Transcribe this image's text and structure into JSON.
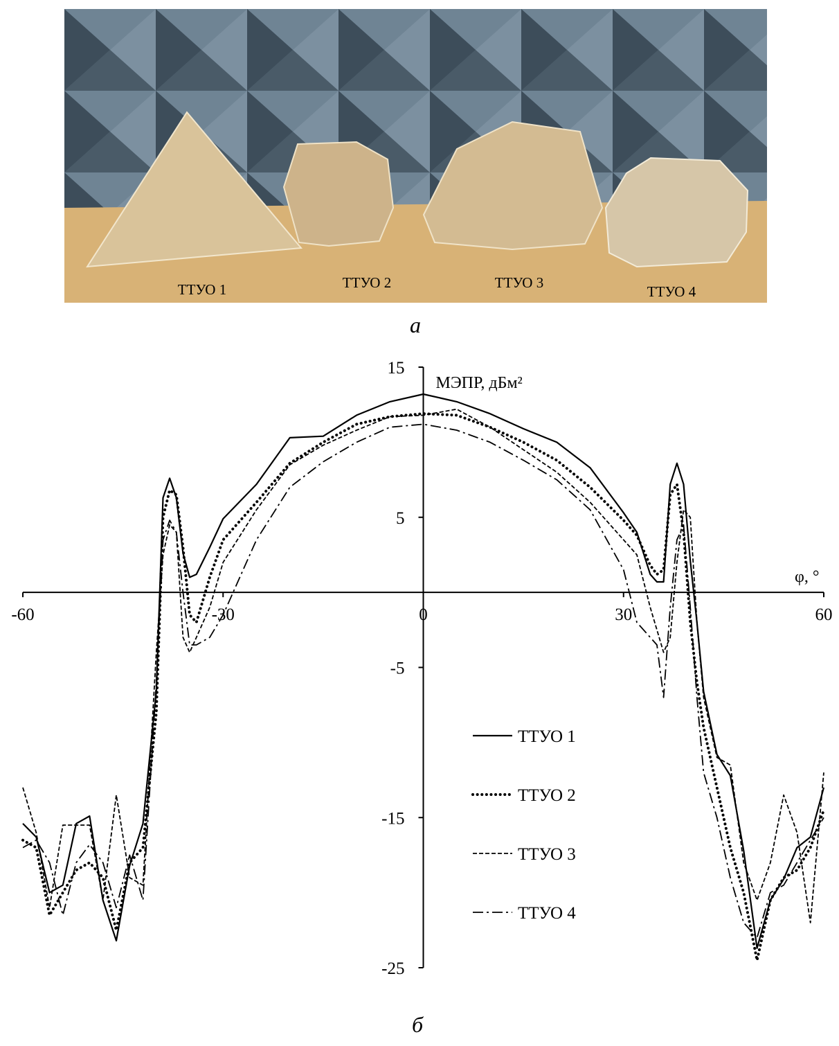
{
  "photo_labels": [
    "ТТУО 1",
    "ТТУО 2",
    "ТТУО 3",
    "ТТУО 4"
  ],
  "photo_caption": "а",
  "chart_caption": "б",
  "chart_data": {
    "type": "line",
    "y_label": "МЭПР, дБм²",
    "x_label": "φ, °",
    "xlim": [
      -60,
      60
    ],
    "xticks": [
      -60,
      -30,
      0,
      30,
      60
    ],
    "ylim": [
      -25,
      15
    ],
    "yticks": [
      -25,
      -15,
      -5,
      5,
      15
    ],
    "x": [
      -60,
      -58,
      -56,
      -54,
      -52,
      -50,
      -48,
      -46,
      -44,
      -42,
      -40,
      -39,
      -38,
      -37,
      -36,
      -35,
      -34,
      -32,
      -30,
      -25,
      -20,
      -15,
      -10,
      -5,
      0,
      5,
      10,
      15,
      20,
      25,
      30,
      32,
      34,
      35,
      36,
      37,
      38,
      39,
      40,
      41,
      42,
      44,
      46,
      48,
      50,
      52,
      54,
      56,
      58,
      60
    ],
    "series": [
      {
        "name": "ТТУО 1",
        "color": "#000000",
        "dash": "solid",
        "values": [
          -15.4,
          -16.3,
          -20,
          -19.5,
          -15.4,
          -14.9,
          -20.5,
          -23.2,
          -18.2,
          -15.4,
          -6.6,
          6.3,
          7.6,
          6.3,
          2.6,
          1.0,
          1.2,
          3,
          4.9,
          7.2,
          10.3,
          10.4,
          11.8,
          12.7,
          13.2,
          12.7,
          11.9,
          10.9,
          10,
          8.3,
          5.3,
          4,
          1.2,
          0.7,
          0.7,
          7.2,
          8.6,
          7.2,
          2.1,
          -2,
          -6.6,
          -10.8,
          -12.2,
          -17.2,
          -23.7,
          -20.5,
          -19.1,
          -17,
          -16.3,
          -13
        ]
      },
      {
        "name": "ТТУО 2",
        "color": "#000000",
        "dash": "dotted",
        "values": [
          -16.5,
          -17,
          -21.5,
          -20,
          -18.5,
          -18,
          -19,
          -22.5,
          -18,
          -17,
          -8,
          5,
          6.8,
          6.5,
          3,
          -1.5,
          -2,
          1,
          3.5,
          6,
          8.6,
          10,
          11.2,
          11.7,
          11.9,
          11.8,
          11,
          10,
          8.8,
          7,
          4.8,
          3.8,
          1.8,
          1.2,
          1.5,
          6.5,
          7.2,
          4,
          -2,
          -6,
          -9,
          -13,
          -17,
          -20,
          -24.5,
          -20.5,
          -19,
          -18.5,
          -17,
          -14.5
        ]
      },
      {
        "name": "ТТУО 3",
        "color": "#000000",
        "dash": "dashed",
        "values": [
          -13,
          -16,
          -21,
          -15.5,
          -15.5,
          -15.5,
          -20.5,
          -13.5,
          -19,
          -19.5,
          -4,
          2.5,
          4.5,
          4,
          -3,
          -4,
          -3,
          -1,
          2,
          5.5,
          8.5,
          9.8,
          10.8,
          11.7,
          11.8,
          12.2,
          11,
          9.5,
          8,
          6,
          3.5,
          2.5,
          -1,
          -2.5,
          -4,
          -3,
          2,
          5.5,
          5,
          -2,
          -7,
          -11,
          -11.5,
          -18,
          -20.5,
          -18,
          -13.5,
          -16,
          -22,
          -12
        ]
      },
      {
        "name": "ТТУО 4",
        "color": "#000000",
        "dash": "dashdot",
        "values": [
          -17,
          -16.5,
          -18,
          -21.5,
          -18,
          -16.8,
          -18,
          -21,
          -17.5,
          -20.5,
          -6,
          3.5,
          4.8,
          4,
          0,
          -3.5,
          -3.5,
          -3,
          -1.5,
          3.5,
          7,
          8.7,
          10,
          11,
          11.2,
          10.8,
          10,
          8.8,
          7.5,
          5.5,
          1.5,
          -2,
          -3,
          -3.5,
          -7,
          -1,
          3.5,
          4.5,
          -1,
          -7,
          -12,
          -15,
          -19,
          -22,
          -23,
          -20,
          -19.5,
          -18,
          -16.5,
          -15
        ]
      }
    ]
  }
}
